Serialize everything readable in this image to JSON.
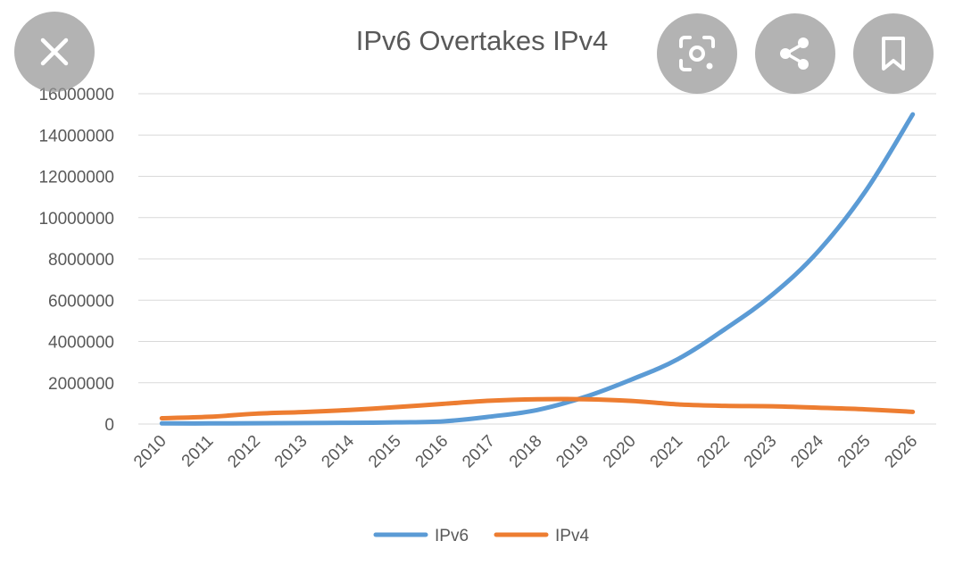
{
  "overlay": {
    "close_icon": "close-icon",
    "lens_icon": "visual-search-icon",
    "share_icon": "share-icon",
    "bookmark_icon": "bookmark-icon",
    "button_color": "#969696"
  },
  "chart_data": {
    "type": "line",
    "title": "IPv6 Overtakes IPv4",
    "categories": [
      "2010",
      "2011",
      "2012",
      "2013",
      "2014",
      "2015",
      "2016",
      "2017",
      "2018",
      "2019",
      "2020",
      "2021",
      "2022",
      "2023",
      "2024",
      "2025",
      "2026"
    ],
    "ylim": [
      0,
      16000000
    ],
    "yticks": [
      "0",
      "2000000",
      "4000000",
      "6000000",
      "8000000",
      "10000000",
      "12000000",
      "14000000",
      "16000000"
    ],
    "grid": true,
    "legend": "bottom",
    "series": [
      {
        "name": "IPv6",
        "color": "#5b9bd5",
        "values": [
          30000,
          30000,
          40000,
          50000,
          60000,
          80000,
          130000,
          360000,
          680000,
          1300000,
          2150000,
          3150000,
          4600000,
          6250000,
          8400000,
          11300000,
          15000000
        ]
      },
      {
        "name": "IPv4",
        "color": "#ed7d31",
        "values": [
          280000,
          350000,
          500000,
          580000,
          680000,
          820000,
          980000,
          1130000,
          1200000,
          1200000,
          1120000,
          950000,
          880000,
          860000,
          790000,
          710000,
          590000
        ]
      }
    ]
  }
}
